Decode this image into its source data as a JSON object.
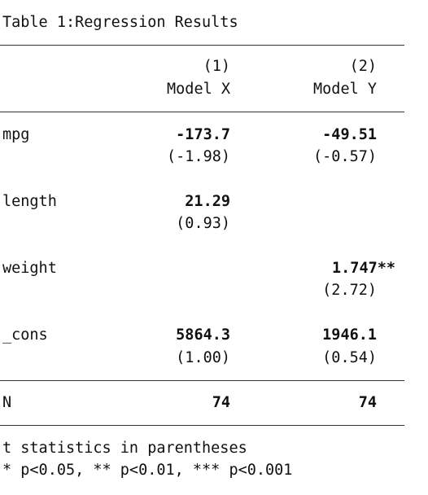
{
  "title": "Table 1:Regression Results",
  "columns": [
    {
      "number": "(1)",
      "name": "Model X"
    },
    {
      "number": "(2)",
      "name": "Model Y"
    }
  ],
  "rows": [
    {
      "label": "mpg",
      "cells": [
        {
          "coef": "-173.7",
          "t": "(-1.98)"
        },
        {
          "coef": "-49.51",
          "t": "(-0.57)"
        }
      ]
    },
    {
      "label": "length",
      "cells": [
        {
          "coef": "21.29",
          "t": "(0.93)"
        },
        null
      ]
    },
    {
      "label": "weight",
      "cells": [
        null,
        {
          "coef": "1.747**",
          "t": "(2.72)"
        }
      ]
    },
    {
      "label": "_cons",
      "cells": [
        {
          "coef": "5864.3",
          "t": "(1.00)"
        },
        {
          "coef": "1946.1",
          "t": "(0.54)"
        }
      ]
    }
  ],
  "n": {
    "label": "N",
    "values": [
      "74",
      "74"
    ]
  },
  "notes": [
    "t statistics in parentheses",
    "* p<0.05, ** p<0.01, *** p<0.001"
  ]
}
